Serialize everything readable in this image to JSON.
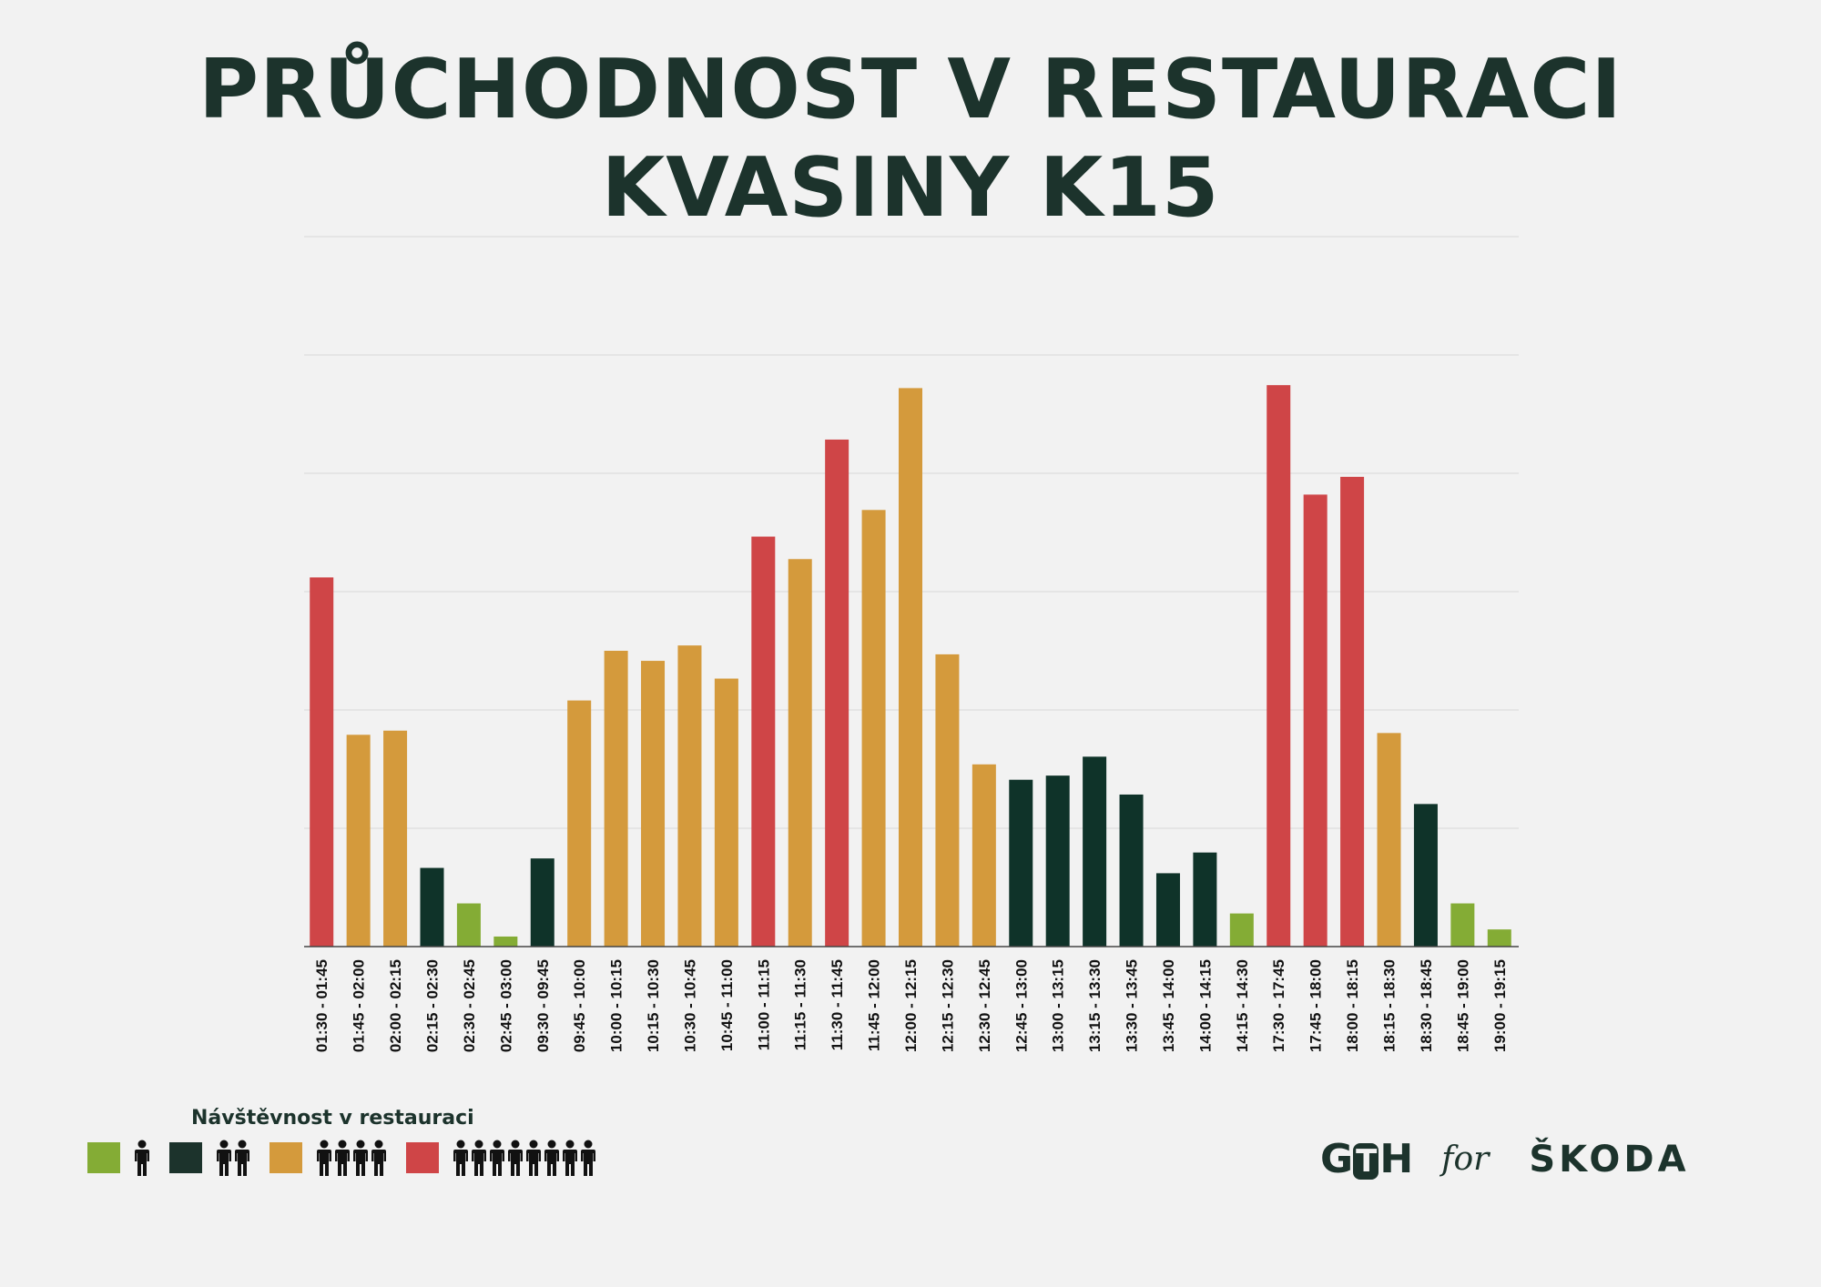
{
  "title_lines": [
    "PRŮCHODNOST V RESTAURACI",
    "KVASINY K15"
  ],
  "legend": {
    "title": "Návštěvnost v restauraci",
    "items": [
      {
        "color": "#84ac35",
        "people": 1
      },
      {
        "color": "#1c332c",
        "people": 2
      },
      {
        "color": "#d49a3c",
        "people": 4
      },
      {
        "color": "#cf4547",
        "people": 8
      }
    ]
  },
  "logos": {
    "left": "GTH",
    "left_middle": "T",
    "connector": "for",
    "right": "ŠKODA"
  },
  "chart_data": {
    "type": "bar",
    "categories": [
      "01:30 - 01:45",
      "01:45 - 02:00",
      "02:00 - 02:15",
      "02:15 - 02:30",
      "02:30 - 02:45",
      "02:45 - 03:00",
      "09:30 - 09:45",
      "09:45 - 10:00",
      "10:00 - 10:15",
      "10:15 - 10:30",
      "10:30 - 10:45",
      "10:45 - 11:00",
      "11:00 - 11:15",
      "11:15 - 11:30",
      "11:30 - 11:45",
      "11:45 - 12:00",
      "12:00 - 12:15",
      "12:15 - 12:30",
      "12:30 - 12:45",
      "12:45 - 13:00",
      "13:00 - 13:15",
      "13:15 - 13:30",
      "13:30 - 13:45",
      "13:45 - 14:00",
      "14:00 - 14:15",
      "14:15 - 14:30",
      "17:30 - 17:45",
      "17:45 - 18:00",
      "18:00 - 18:15",
      "18:15 - 18:30",
      "18:30 - 18:45",
      "18:45 - 19:00",
      "19:00 - 19:15"
    ],
    "values": [
      62.4,
      35.8,
      36.5,
      13.3,
      7.3,
      1.7,
      14.9,
      41.6,
      50.0,
      48.3,
      50.9,
      45.3,
      69.3,
      65.5,
      85.7,
      73.8,
      94.4,
      49.4,
      30.8,
      28.2,
      28.9,
      32.1,
      25.7,
      12.4,
      15.9,
      5.6,
      94.9,
      76.4,
      79.4,
      36.1,
      24.1,
      7.3,
      2.9
    ],
    "colors": [
      "#cf4547",
      "#d49a3c",
      "#d49a3c",
      "#0f3329",
      "#84ac35",
      "#84ac35",
      "#0f3329",
      "#d49a3c",
      "#d49a3c",
      "#d49a3c",
      "#d49a3c",
      "#d49a3c",
      "#cf4547",
      "#d49a3c",
      "#cf4547",
      "#d49a3c",
      "#d49a3c",
      "#d49a3c",
      "#d49a3c",
      "#0f3329",
      "#0f3329",
      "#0f3329",
      "#0f3329",
      "#0f3329",
      "#0f3329",
      "#84ac35",
      "#cf4547",
      "#cf4547",
      "#cf4547",
      "#d49a3c",
      "#0f3329",
      "#84ac35",
      "#84ac35"
    ],
    "ylim": [
      0,
      120
    ],
    "grid": true,
    "gridlines": 6,
    "title": "",
    "xlabel": "",
    "ylabel": ""
  }
}
